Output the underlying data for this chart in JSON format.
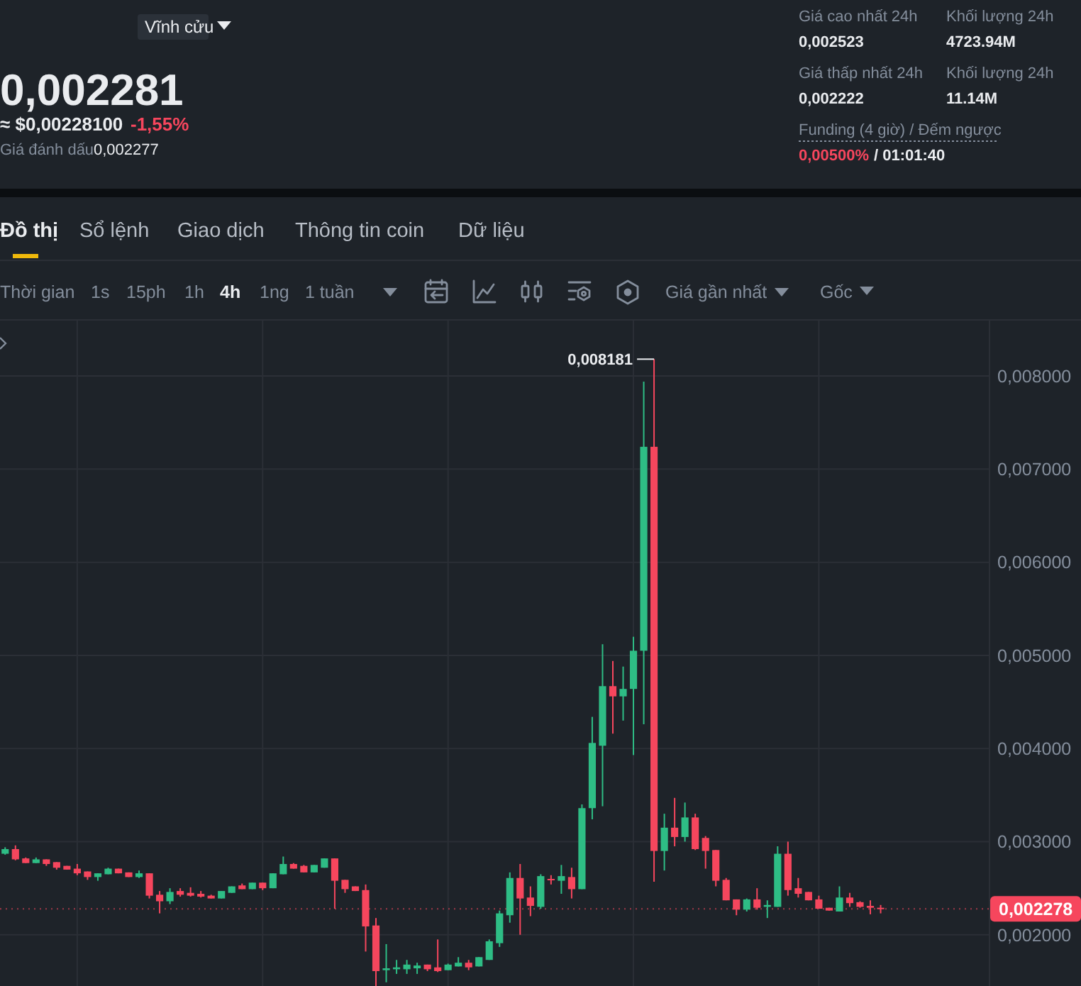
{
  "chart_data": {
    "type": "candlestick",
    "categories": [
      null,
      null,
      null,
      null,
      null,
      null,
      null,
      null,
      null,
      null,
      null,
      null,
      null,
      null,
      null,
      null,
      null,
      null,
      null,
      null,
      null,
      null,
      null,
      null,
      null,
      null,
      null,
      null,
      null,
      null,
      null,
      null,
      null,
      null,
      null,
      null,
      null,
      null,
      null,
      null,
      null,
      null,
      null,
      null,
      null,
      null,
      null,
      null,
      null,
      null,
      null,
      null,
      null,
      null,
      null,
      null,
      null,
      null,
      null,
      null,
      null,
      null,
      null,
      null,
      null,
      null,
      null,
      null,
      null,
      null,
      null,
      null,
      null,
      null,
      null,
      null,
      null,
      null,
      null,
      null,
      null,
      null,
      null,
      null,
      null,
      null,
      null,
      null,
      null,
      null,
      null,
      null,
      null,
      null,
      null,
      null
    ],
    "ohlc": [
      [
        0.00287,
        0.00294,
        0.00286,
        0.00292
      ],
      [
        0.00292,
        0.00296,
        0.0028,
        0.00281
      ],
      [
        0.00282,
        0.00283,
        0.00277,
        0.00277
      ],
      [
        0.00277,
        0.00283,
        0.00277,
        0.00281
      ],
      [
        0.00281,
        0.00281,
        0.00274,
        0.00276
      ],
      [
        0.00278,
        0.00278,
        0.0027,
        0.00272
      ],
      [
        0.00274,
        0.00274,
        0.0027,
        0.0027
      ],
      [
        0.00271,
        0.00276,
        0.00264,
        0.00266
      ],
      [
        0.00268,
        0.00268,
        0.00259,
        0.00262
      ],
      [
        0.00262,
        0.00266,
        0.00258,
        0.00266
      ],
      [
        0.00265,
        0.00272,
        0.00265,
        0.00271
      ],
      [
        0.00271,
        0.00271,
        0.00266,
        0.00266
      ],
      [
        0.00267,
        0.00267,
        0.00262,
        0.00262
      ],
      [
        0.00262,
        0.00269,
        0.00261,
        0.00266
      ],
      [
        0.00266,
        0.00266,
        0.00239,
        0.00242
      ],
      [
        0.00243,
        0.00247,
        0.00223,
        0.00236
      ],
      [
        0.00236,
        0.0025,
        0.00233,
        0.00246
      ],
      [
        0.00247,
        0.0025,
        0.00241,
        0.00243
      ],
      [
        0.00245,
        0.00251,
        0.00241,
        0.00242
      ],
      [
        0.00244,
        0.00247,
        0.0024,
        0.00241
      ],
      [
        0.00242,
        0.00243,
        0.00239,
        0.00239
      ],
      [
        0.00239,
        0.00247,
        0.00239,
        0.00247
      ],
      [
        0.00245,
        0.00252,
        0.00245,
        0.00252
      ],
      [
        0.00253,
        0.00255,
        0.00249,
        0.00249
      ],
      [
        0.00249,
        0.00256,
        0.00249,
        0.00256
      ],
      [
        0.00256,
        0.00256,
        0.00248,
        0.0025
      ],
      [
        0.0025,
        0.00266,
        0.0025,
        0.00266
      ],
      [
        0.00265,
        0.00284,
        0.00265,
        0.00276
      ],
      [
        0.00276,
        0.00277,
        0.00271,
        0.00271
      ],
      [
        0.00274,
        0.00275,
        0.00267,
        0.00267
      ],
      [
        0.00267,
        0.00275,
        0.00267,
        0.00275
      ],
      [
        0.00272,
        0.00282,
        0.00272,
        0.00282
      ],
      [
        0.00282,
        0.00282,
        0.00228,
        0.00258
      ],
      [
        0.00259,
        0.00259,
        0.00245,
        0.00249
      ],
      [
        0.00252,
        0.00252,
        0.00247,
        0.00247
      ],
      [
        0.00248,
        0.00254,
        0.00182,
        0.00209
      ],
      [
        0.0021,
        0.00218,
        0.00145,
        0.00161
      ],
      [
        0.00162,
        0.0019,
        0.00149,
        0.00164
      ],
      [
        0.00163,
        0.00173,
        0.00158,
        0.00165
      ],
      [
        0.00163,
        0.00173,
        0.00158,
        0.00168
      ],
      [
        0.00164,
        0.0017,
        0.00158,
        0.00167
      ],
      [
        0.00168,
        0.00168,
        0.00161,
        0.00163
      ],
      [
        0.00165,
        0.00195,
        0.0016,
        0.00161
      ],
      [
        0.00162,
        0.00169,
        0.00162,
        0.00168
      ],
      [
        0.00166,
        0.00176,
        0.00166,
        0.0017
      ],
      [
        0.0017,
        0.00173,
        0.00162,
        0.00165
      ],
      [
        0.00166,
        0.00176,
        0.00166,
        0.00176
      ],
      [
        0.00173,
        0.00195,
        0.00173,
        0.00193
      ],
      [
        0.00191,
        0.00226,
        0.00187,
        0.00223
      ],
      [
        0.00221,
        0.00267,
        0.00213,
        0.00261
      ],
      [
        0.00261,
        0.00276,
        0.002,
        0.00239
      ],
      [
        0.0024,
        0.00252,
        0.0022,
        0.00231
      ],
      [
        0.0023,
        0.00265,
        0.00228,
        0.00263
      ],
      [
        0.0026,
        0.00264,
        0.00254,
        0.00259
      ],
      [
        0.00258,
        0.00275,
        0.00244,
        0.00263
      ],
      [
        0.00262,
        0.00272,
        0.00239,
        0.00249
      ],
      [
        0.00249,
        0.0034,
        0.00249,
        0.00336
      ],
      [
        0.00336,
        0.00434,
        0.00324,
        0.00406
      ],
      [
        0.00403,
        0.00512,
        0.00338,
        0.00467
      ],
      [
        0.00467,
        0.00494,
        0.00416,
        0.00456
      ],
      [
        0.00456,
        0.00488,
        0.0043,
        0.00464
      ],
      [
        0.00464,
        0.0052,
        0.00393,
        0.00505
      ],
      [
        0.00505,
        0.00794,
        0.00426,
        0.00724
      ],
      [
        0.00724,
        0.008181,
        0.00257,
        0.0029
      ],
      [
        0.0029,
        0.0033,
        0.00269,
        0.00315
      ],
      [
        0.00315,
        0.00347,
        0.00295,
        0.00305
      ],
      [
        0.00305,
        0.00342,
        0.003,
        0.00326
      ],
      [
        0.00326,
        0.0033,
        0.00291,
        0.00292
      ],
      [
        0.00304,
        0.00306,
        0.00271,
        0.0029
      ],
      [
        0.00291,
        0.00291,
        0.00252,
        0.00258
      ],
      [
        0.00259,
        0.00261,
        0.00237,
        0.00237
      ],
      [
        0.00238,
        0.00238,
        0.00221,
        0.00227
      ],
      [
        0.00227,
        0.00239,
        0.00225,
        0.00238
      ],
      [
        0.00238,
        0.0025,
        0.00227,
        0.00229
      ],
      [
        0.0023,
        0.00237,
        0.00218,
        0.00232
      ],
      [
        0.0023,
        0.00295,
        0.0023,
        0.00287
      ],
      [
        0.00287,
        0.003,
        0.00242,
        0.00248
      ],
      [
        0.0025,
        0.00261,
        0.0024,
        0.00244
      ],
      [
        0.00246,
        0.00246,
        0.00237,
        0.00237
      ],
      [
        0.00238,
        0.00242,
        0.00228,
        0.00228
      ],
      [
        0.00229,
        0.00229,
        0.00226,
        0.00226
      ],
      [
        0.00225,
        0.00252,
        0.00225,
        0.0024
      ],
      [
        0.0024,
        0.00245,
        0.0023,
        0.00234
      ],
      [
        0.00235,
        0.00236,
        0.00229,
        0.0023
      ],
      [
        0.00231,
        0.00237,
        0.00222,
        0.00229
      ],
      [
        0.00229,
        0.00232,
        0.00223,
        0.00228
      ],
      null,
      null,
      null,
      null,
      null,
      null,
      null,
      null,
      null,
      null
    ],
    "ylim": [
      0.00145,
      0.00861
    ],
    "yticks": [
      {
        "value": 0.002,
        "label": "0,002000"
      },
      {
        "value": 0.003,
        "label": "0,003000"
      },
      {
        "value": 0.004,
        "label": "0,004000"
      },
      {
        "value": 0.005,
        "label": "0,005000"
      },
      {
        "value": 0.006,
        "label": "0,006000"
      },
      {
        "value": 0.007,
        "label": "0,007000"
      },
      {
        "value": 0.008,
        "label": "0,008000"
      }
    ],
    "tick_labels": "y",
    "grid": true,
    "ref_lines": [
      {
        "axis": "y",
        "value": 0.002278,
        "label": "0,002278",
        "color": "#f6465d"
      }
    ],
    "annotations": [
      "Vĩnh cửu",
      "0,002281",
      "≈ $0,00228100",
      "-1,55%",
      "Giá đánh dấu",
      "0,002277",
      "Giá cao nhất 24h",
      "0,002523",
      "Khối lượng 24h",
      "4723.94M",
      "Giá thấp nhất 24h",
      "0,002222",
      "Khối lượng 24h",
      "11.14M",
      "Funding (4 giờ) / Đếm ngược",
      "0,00500%",
      "/ 01:01:40",
      "Đồ thị",
      "Sổ lệnh",
      "Giao dịch",
      "Thông tin coin",
      "Dữ liệu",
      "Thời gian",
      "1s",
      "15ph",
      "1h",
      "4h",
      "1ng",
      "1 tuần",
      "Giá gần nhất",
      "Gốc",
      "0,008181"
    ]
  }
}
